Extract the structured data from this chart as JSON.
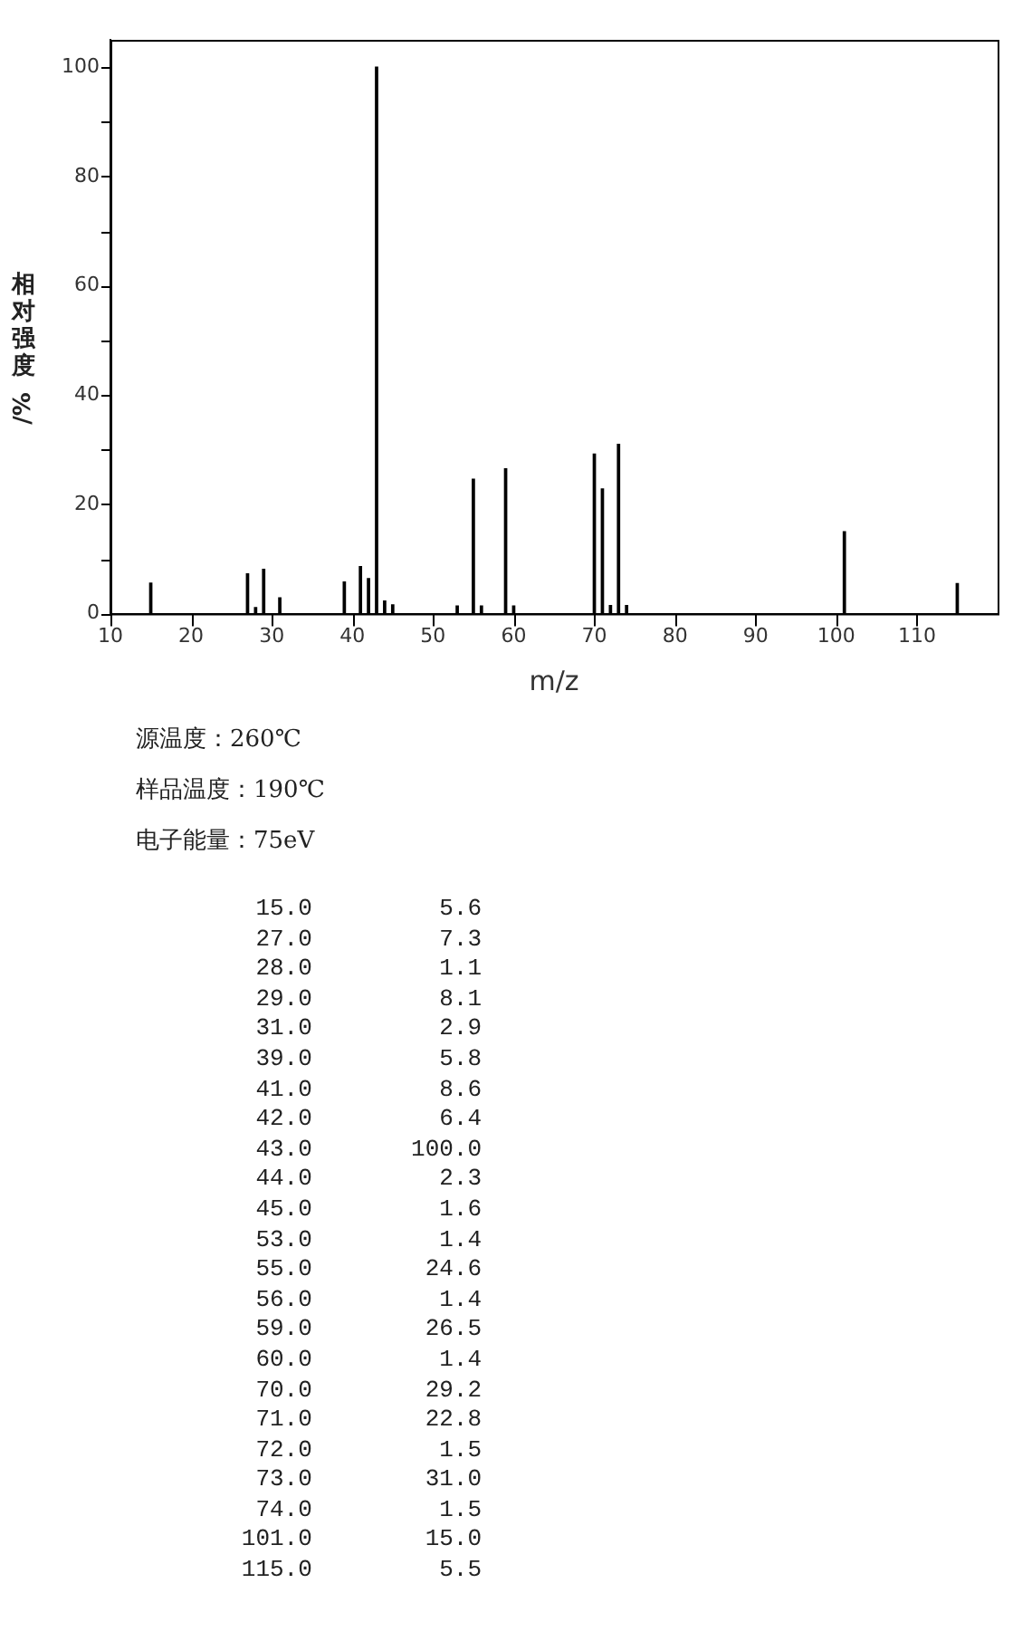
{
  "chart_data": [
    {
      "type": "bar",
      "xlabel": "m/z",
      "ylabel": "相对强度/%",
      "x": [
        15,
        27,
        28,
        29,
        31,
        39,
        41,
        42,
        43,
        44,
        45,
        53,
        55,
        56,
        59,
        60,
        70,
        71,
        72,
        73,
        74,
        101,
        115
      ],
      "values": [
        5.6,
        7.3,
        1.1,
        8.1,
        2.9,
        5.8,
        8.6,
        6.4,
        100,
        2.3,
        1.6,
        1.4,
        24.6,
        1.4,
        26.5,
        1.4,
        29.2,
        22.8,
        1.5,
        31.0,
        1.5,
        15.0,
        5.5
      ],
      "color": "#000000",
      "xlim": [
        10,
        120
      ],
      "xticks": [
        10,
        20,
        30,
        40,
        50,
        60,
        70,
        80,
        90,
        100,
        110
      ],
      "ylim": [
        0,
        105
      ],
      "yticks": [
        0,
        {
          "value": 10,
          "label": null
        },
        20,
        {
          "value": 30,
          "label": null
        },
        40,
        {
          "value": 50,
          "label": null
        },
        60,
        {
          "value": 70,
          "label": null
        },
        80,
        {
          "value": 90,
          "label": null
        },
        100
      ],
      "grid": false,
      "legend": false,
      "annotations": [
        "源温度：260℃",
        "样品温度：190℃",
        "电子能量：75eV"
      ]
    },
    {
      "type": "other",
      "annotations": [
        "15.0 5.6",
        "27.0 7.3",
        "28.0 1.1",
        "29.0 8.1",
        "31.0 2.9",
        "39.0 5.8",
        "41.0 8.6",
        "42.0 6.4",
        "43.0 100.0",
        "44.0 2.3",
        "45.0 1.6",
        "53.0 1.4",
        "55.0 24.6",
        "56.0 1.4",
        "59.0 26.5",
        "60.0 1.4",
        "70.0 29.2",
        "71.0 22.8",
        "72.0 1.5",
        "73.0 31.0",
        "74.0 1.5",
        "101.0 15.0",
        "115.0 5.5"
      ]
    }
  ]
}
